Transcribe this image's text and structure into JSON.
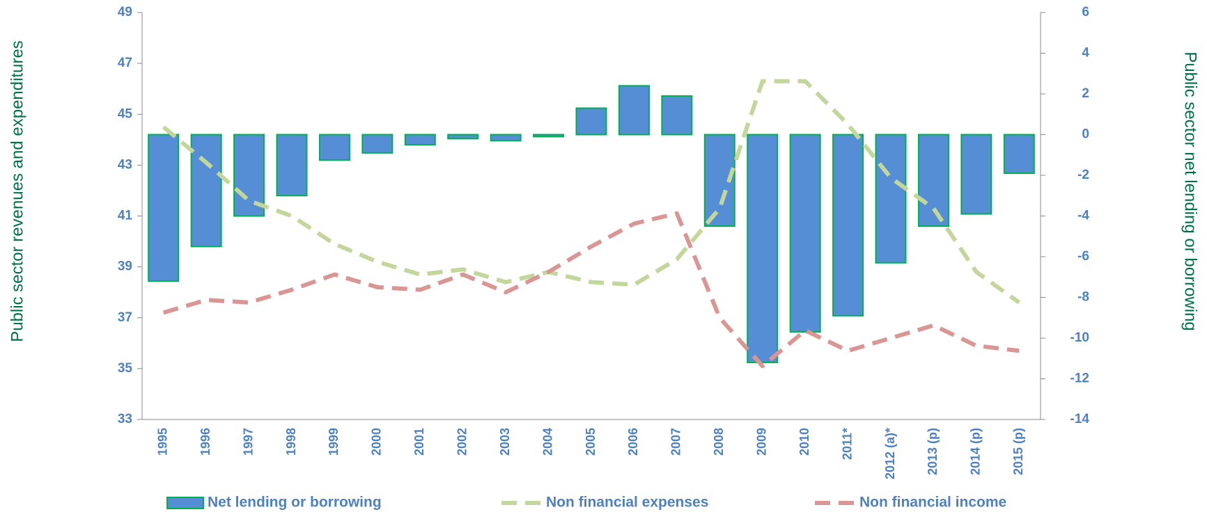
{
  "chart_data": {
    "type": "bar_line",
    "y_label": "Public sector revenues and expenditures",
    "y2_label": "Public sector net lending or borrowing",
    "categories": [
      "1995",
      "1996",
      "1997",
      "1998",
      "1999",
      "2000",
      "2001",
      "2002",
      "2003",
      "2004",
      "2005",
      "2006",
      "2007",
      "2008",
      "2009",
      "2010",
      "2011*",
      "2012 (a)*",
      "2013 (p)",
      "2014 (p)",
      "2015 (p)"
    ],
    "ylim": [
      33,
      49
    ],
    "yticks": [
      33,
      35,
      37,
      39,
      41,
      43,
      45,
      47,
      49
    ],
    "y2lim": [
      -14,
      6
    ],
    "y2ticks": [
      -14,
      -12,
      -10,
      -8,
      -6,
      -4,
      -2,
      0,
      2,
      4,
      6
    ],
    "series": [
      {
        "name": "Net lending or borrowing",
        "type": "bar",
        "axis": "y2",
        "color": "#558ed5",
        "edge_color": "#00b050",
        "values": [
          -7.2,
          -5.5,
          -4.0,
          -3.0,
          -1.25,
          -0.9,
          -0.5,
          -0.2,
          -0.3,
          -0.1,
          1.3,
          2.4,
          1.9,
          -4.5,
          -11.2,
          -9.7,
          -8.9,
          -6.3,
          -4.5,
          -3.9,
          -1.9
        ]
      },
      {
        "name": "Non financial expenses",
        "type": "line",
        "axis": "y",
        "color": "#c3d69b",
        "values": [
          44.5,
          43.1,
          41.6,
          41.0,
          39.9,
          39.2,
          38.7,
          38.9,
          38.4,
          38.8,
          38.4,
          38.3,
          39.3,
          41.3,
          46.3,
          46.3,
          44.6,
          42.5,
          41.3,
          38.8,
          37.6
        ]
      },
      {
        "name": "Non financial income",
        "type": "line",
        "axis": "y",
        "color": "#d99694",
        "values": [
          37.2,
          37.7,
          37.6,
          38.1,
          38.7,
          38.2,
          38.1,
          38.7,
          38.0,
          38.8,
          39.8,
          40.7,
          41.1,
          37.0,
          35.1,
          36.5,
          35.7,
          36.2,
          36.7,
          35.9,
          35.7
        ]
      }
    ]
  }
}
